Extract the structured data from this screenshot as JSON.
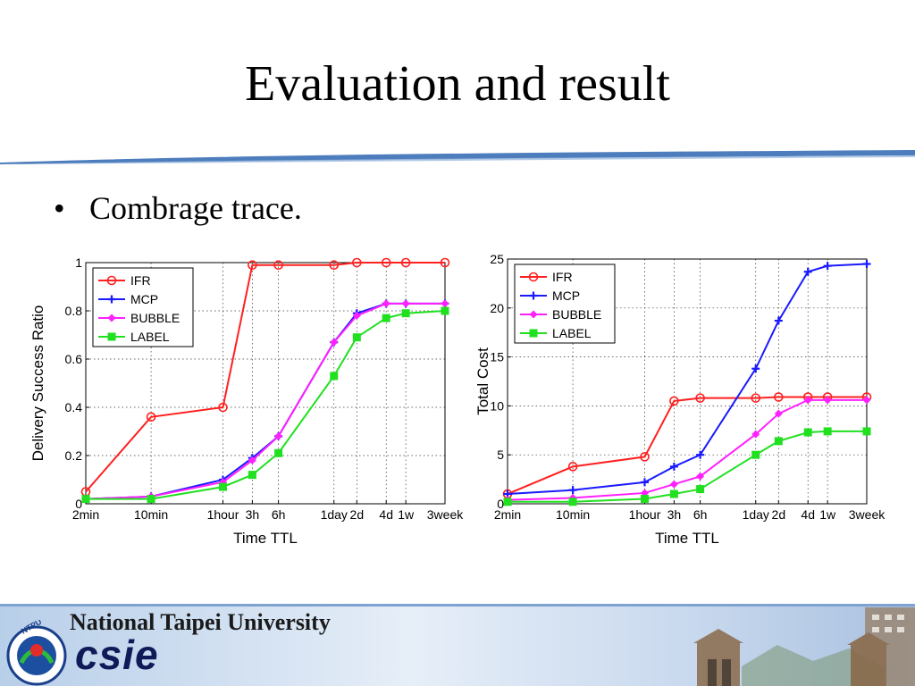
{
  "slide": {
    "title": "Evaluation and result",
    "bullet": "Combrage trace."
  },
  "footer": {
    "university": "National Taipei University",
    "department": "csie",
    "logo_text": "NTPU"
  },
  "colors": {
    "IFR": "#ff2020",
    "MCP": "#1a1aff",
    "BUBBLE": "#ff20ff",
    "LABEL": "#20e020",
    "title_rule": "#3a6fb5"
  },
  "chart_data": [
    {
      "type": "line",
      "title": "",
      "xlabel": "Time TTL",
      "ylabel": "Delivery Success Ratio",
      "categories": [
        "2min",
        "10min",
        "1hour",
        "3h",
        "6h",
        "1day",
        "2d",
        "4d",
        "1w",
        "3week"
      ],
      "x_positions": [
        0,
        1,
        2.1,
        2.55,
        2.95,
        3.8,
        4.15,
        4.6,
        4.9,
        5.5
      ],
      "x_points": [
        0,
        1,
        2.1,
        2.55,
        2.95,
        3.8,
        4.15,
        4.6,
        4.9,
        5.5
      ],
      "ylim": [
        0,
        1
      ],
      "yticks": [
        0,
        0.2,
        0.4,
        0.6,
        0.8,
        1
      ],
      "ytick_labels": [
        "0",
        "0.2",
        "0.4",
        "0.6",
        "0.8",
        "1"
      ],
      "grid": true,
      "legend_position": "top-left",
      "series": [
        {
          "name": "IFR",
          "marker": "circle",
          "values": [
            0.05,
            0.36,
            0.4,
            0.99,
            0.99,
            0.99,
            1.0,
            1.0,
            1.0,
            1.0
          ]
        },
        {
          "name": "MCP",
          "marker": "plus",
          "values": [
            0.02,
            0.03,
            0.1,
            0.19,
            0.28,
            0.67,
            0.79,
            0.83,
            0.83,
            0.83
          ]
        },
        {
          "name": "BUBBLE",
          "marker": "diamond",
          "values": [
            0.02,
            0.03,
            0.09,
            0.18,
            0.28,
            0.67,
            0.78,
            0.83,
            0.83,
            0.83
          ]
        },
        {
          "name": "LABEL",
          "marker": "square",
          "values": [
            0.02,
            0.02,
            0.07,
            0.12,
            0.21,
            0.53,
            0.69,
            0.77,
            0.79,
            0.8
          ]
        }
      ]
    },
    {
      "type": "line",
      "title": "",
      "xlabel": "Time TTL",
      "ylabel": "Total Cost",
      "categories": [
        "2min",
        "10min",
        "1hour",
        "3h",
        "6h",
        "1day",
        "2d",
        "4d",
        "1w",
        "3week"
      ],
      "x_positions": [
        0,
        1,
        2.1,
        2.55,
        2.95,
        3.8,
        4.15,
        4.6,
        4.9,
        5.5
      ],
      "x_points": [
        0,
        1,
        2.1,
        2.55,
        2.95,
        3.8,
        4.15,
        4.6,
        4.9,
        5.5
      ],
      "ylim": [
        0,
        25
      ],
      "yticks": [
        0,
        5,
        10,
        15,
        20,
        25
      ],
      "ytick_labels": [
        "0",
        "5",
        "10",
        "15",
        "20",
        "25"
      ],
      "grid": true,
      "legend_position": "top-left",
      "series": [
        {
          "name": "IFR",
          "marker": "circle",
          "values": [
            1.0,
            3.8,
            4.8,
            10.5,
            10.8,
            10.8,
            10.9,
            10.9,
            10.9,
            10.9
          ]
        },
        {
          "name": "MCP",
          "marker": "plus",
          "values": [
            1.0,
            1.4,
            2.2,
            3.8,
            5.0,
            13.8,
            18.7,
            23.7,
            24.3,
            24.5
          ]
        },
        {
          "name": "BUBBLE",
          "marker": "diamond",
          "values": [
            0.4,
            0.6,
            1.1,
            2.0,
            2.8,
            7.1,
            9.2,
            10.6,
            10.6,
            10.6
          ]
        },
        {
          "name": "LABEL",
          "marker": "square",
          "values": [
            0.2,
            0.2,
            0.5,
            1.0,
            1.5,
            5.0,
            6.4,
            7.3,
            7.4,
            7.4
          ]
        }
      ]
    }
  ]
}
